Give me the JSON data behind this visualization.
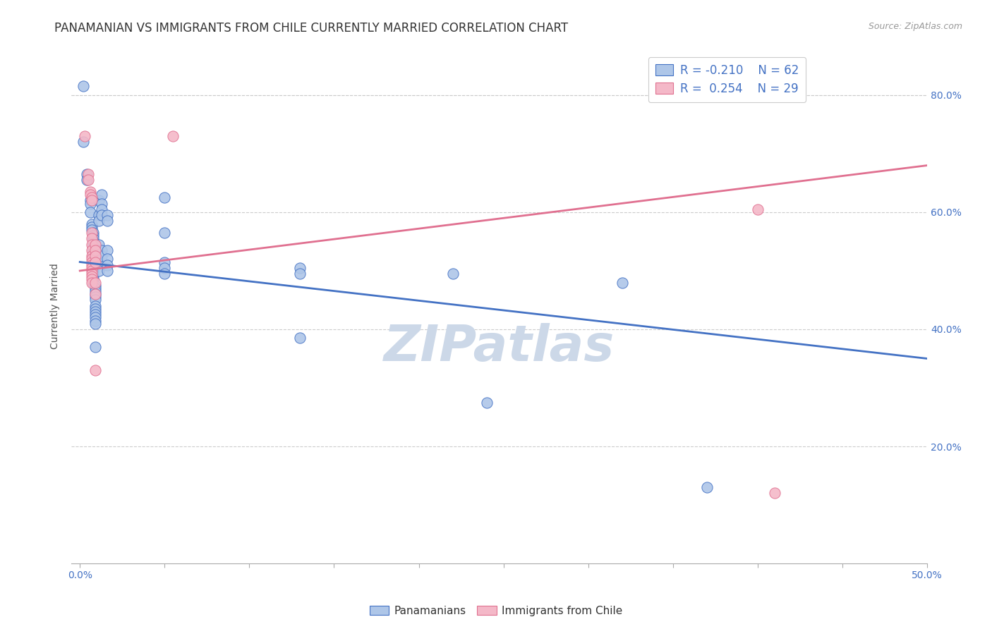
{
  "title": "PANAMANIAN VS IMMIGRANTS FROM CHILE CURRENTLY MARRIED CORRELATION CHART",
  "source": "Source: ZipAtlas.com",
  "xlabel_ticks": [
    "0.0%",
    "",
    "",
    "",
    "",
    "",
    "",
    "",
    "",
    "",
    "50.0%"
  ],
  "xlabel_vals": [
    0.0,
    0.05,
    0.1,
    0.15,
    0.2,
    0.25,
    0.3,
    0.35,
    0.4,
    0.45,
    0.5
  ],
  "ylabel": "Currently Married",
  "ylabel_ticks": [
    "20.0%",
    "40.0%",
    "60.0%",
    "80.0%"
  ],
  "ylabel_vals": [
    0.2,
    0.4,
    0.6,
    0.8
  ],
  "xlim": [
    -0.005,
    0.5
  ],
  "ylim": [
    0.0,
    0.88
  ],
  "watermark": "ZIPatlas",
  "legend_label_blue": "Panamanians",
  "legend_label_pink": "Immigrants from Chile",
  "blue_color": "#aec6e8",
  "pink_color": "#f4b8c8",
  "blue_line_color": "#4472c4",
  "pink_line_color": "#e07090",
  "scatter_blue": [
    [
      0.002,
      0.815
    ],
    [
      0.002,
      0.72
    ],
    [
      0.004,
      0.665
    ],
    [
      0.004,
      0.655
    ],
    [
      0.006,
      0.62
    ],
    [
      0.006,
      0.615
    ],
    [
      0.006,
      0.6
    ],
    [
      0.007,
      0.58
    ],
    [
      0.007,
      0.575
    ],
    [
      0.007,
      0.57
    ],
    [
      0.008,
      0.565
    ],
    [
      0.008,
      0.56
    ],
    [
      0.008,
      0.555
    ],
    [
      0.008,
      0.55
    ],
    [
      0.008,
      0.545
    ],
    [
      0.008,
      0.54
    ],
    [
      0.008,
      0.535
    ],
    [
      0.008,
      0.53
    ],
    [
      0.008,
      0.525
    ],
    [
      0.008,
      0.52
    ],
    [
      0.008,
      0.515
    ],
    [
      0.008,
      0.51
    ],
    [
      0.008,
      0.505
    ],
    [
      0.008,
      0.5
    ],
    [
      0.008,
      0.495
    ],
    [
      0.008,
      0.49
    ],
    [
      0.008,
      0.485
    ],
    [
      0.008,
      0.48
    ],
    [
      0.009,
      0.475
    ],
    [
      0.009,
      0.47
    ],
    [
      0.009,
      0.465
    ],
    [
      0.009,
      0.46
    ],
    [
      0.009,
      0.455
    ],
    [
      0.009,
      0.45
    ],
    [
      0.009,
      0.44
    ],
    [
      0.009,
      0.435
    ],
    [
      0.009,
      0.43
    ],
    [
      0.009,
      0.425
    ],
    [
      0.009,
      0.42
    ],
    [
      0.009,
      0.415
    ],
    [
      0.009,
      0.41
    ],
    [
      0.009,
      0.37
    ],
    [
      0.011,
      0.62
    ],
    [
      0.011,
      0.595
    ],
    [
      0.011,
      0.585
    ],
    [
      0.011,
      0.545
    ],
    [
      0.011,
      0.535
    ],
    [
      0.011,
      0.52
    ],
    [
      0.011,
      0.515
    ],
    [
      0.011,
      0.5
    ],
    [
      0.013,
      0.63
    ],
    [
      0.013,
      0.615
    ],
    [
      0.013,
      0.605
    ],
    [
      0.013,
      0.595
    ],
    [
      0.013,
      0.535
    ],
    [
      0.013,
      0.525
    ],
    [
      0.016,
      0.595
    ],
    [
      0.016,
      0.585
    ],
    [
      0.016,
      0.535
    ],
    [
      0.016,
      0.52
    ],
    [
      0.016,
      0.51
    ],
    [
      0.016,
      0.5
    ],
    [
      0.05,
      0.625
    ],
    [
      0.05,
      0.565
    ],
    [
      0.05,
      0.515
    ],
    [
      0.05,
      0.505
    ],
    [
      0.05,
      0.495
    ],
    [
      0.13,
      0.505
    ],
    [
      0.13,
      0.495
    ],
    [
      0.13,
      0.385
    ],
    [
      0.22,
      0.495
    ],
    [
      0.24,
      0.275
    ],
    [
      0.32,
      0.48
    ],
    [
      0.37,
      0.13
    ]
  ],
  "scatter_pink": [
    [
      0.003,
      0.73
    ],
    [
      0.005,
      0.665
    ],
    [
      0.005,
      0.655
    ],
    [
      0.006,
      0.635
    ],
    [
      0.006,
      0.63
    ],
    [
      0.007,
      0.625
    ],
    [
      0.007,
      0.62
    ],
    [
      0.007,
      0.565
    ],
    [
      0.007,
      0.555
    ],
    [
      0.007,
      0.545
    ],
    [
      0.007,
      0.535
    ],
    [
      0.007,
      0.525
    ],
    [
      0.007,
      0.52
    ],
    [
      0.007,
      0.515
    ],
    [
      0.007,
      0.51
    ],
    [
      0.007,
      0.505
    ],
    [
      0.007,
      0.5
    ],
    [
      0.007,
      0.495
    ],
    [
      0.007,
      0.49
    ],
    [
      0.007,
      0.485
    ],
    [
      0.007,
      0.48
    ],
    [
      0.009,
      0.545
    ],
    [
      0.009,
      0.535
    ],
    [
      0.009,
      0.525
    ],
    [
      0.009,
      0.515
    ],
    [
      0.009,
      0.48
    ],
    [
      0.009,
      0.46
    ],
    [
      0.009,
      0.33
    ],
    [
      0.055,
      0.73
    ],
    [
      0.4,
      0.605
    ],
    [
      0.41,
      0.12
    ]
  ],
  "blue_trend_x": [
    0.0,
    0.5
  ],
  "blue_trend_y": [
    0.515,
    0.35
  ],
  "pink_trend_x": [
    0.0,
    0.5
  ],
  "pink_trend_y": [
    0.5,
    0.68
  ],
  "grid_color": "#cccccc",
  "title_fontsize": 12,
  "tick_fontsize": 10,
  "watermark_fontsize": 52,
  "watermark_color": "#ccd8e8",
  "source_fontsize": 9,
  "ylabel_fontsize": 10
}
